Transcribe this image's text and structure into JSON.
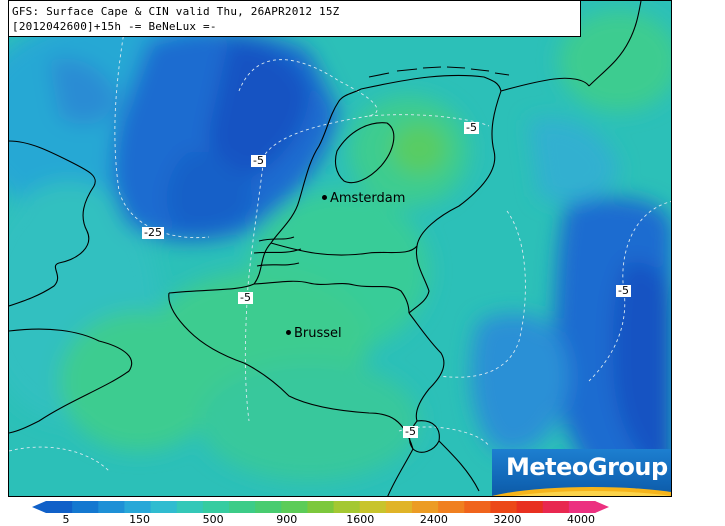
{
  "header": {
    "line1": "GFS: Surface Cape & CIN valid Thu, 26APR2012 15Z",
    "line2": "[2012042600]+15h  -= BeNeLux =-"
  },
  "cities": [
    {
      "name": "Amsterdam"
    },
    {
      "name": "Brussel"
    }
  ],
  "contour_labels": [
    "-5",
    "-5",
    "-25",
    "-5",
    "-5",
    "-5"
  ],
  "logo": {
    "text": "MeteoGroup"
  },
  "colorbar": {
    "ticks": [
      "5",
      "150",
      "500",
      "900",
      "1600",
      "2400",
      "3200",
      "4000"
    ],
    "colors": [
      "#1060c8",
      "#1478d0",
      "#1e90d6",
      "#28a8d8",
      "#30bcd0",
      "#34c8b8",
      "#36cca0",
      "#3ccc88",
      "#48cc70",
      "#5ccc58",
      "#7cc83c",
      "#a4c832",
      "#c8c42c",
      "#e0b428",
      "#ec9c24",
      "#f08020",
      "#f0641c",
      "#ec4818",
      "#e83020",
      "#e82850",
      "#ec3080"
    ]
  },
  "field_colors": {
    "deep_blue": "#1050c0",
    "mid_blue": "#1e6cd0",
    "light_blue": "#2a90d6",
    "cyan": "#30b4d0",
    "teal": "#2cc4b4",
    "green": "#3cd090",
    "bright_green": "#5ad070"
  }
}
